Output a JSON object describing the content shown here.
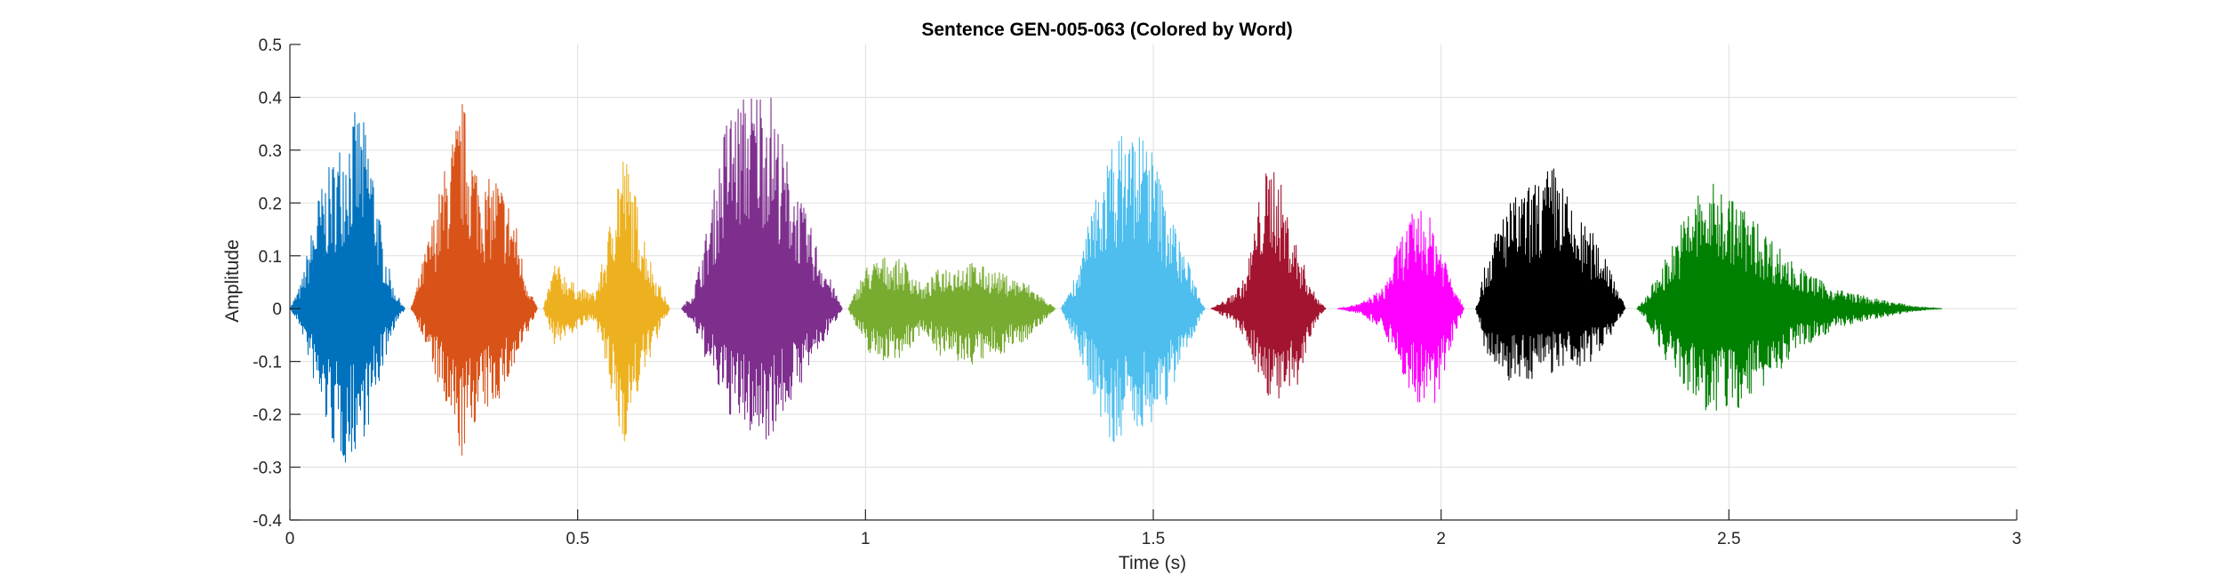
{
  "chart_data": {
    "type": "line",
    "title": "Sentence GEN-005-063 (Colored by Word)",
    "xlabel": "Time (s)",
    "ylabel": "Amplitude",
    "xlim": [
      0,
      3
    ],
    "ylim": [
      -0.4,
      0.5
    ],
    "xticks": [
      "0",
      "0.5",
      "1",
      "1.5",
      "2",
      "2.5",
      "3"
    ],
    "xtick_values": [
      0,
      0.5,
      1,
      1.5,
      2,
      2.5,
      3
    ],
    "yticks": [
      "-0.4",
      "-0.3",
      "-0.2",
      "-0.1",
      "0",
      "0.1",
      "0.2",
      "0.3",
      "0.4",
      "0.5"
    ],
    "ytick_values": [
      -0.4,
      -0.3,
      -0.2,
      -0.1,
      0,
      0.1,
      0.2,
      0.3,
      0.4,
      0.5
    ],
    "grid": true,
    "segments": [
      {
        "color": "#0072BD",
        "t_start": 0.0,
        "t_end": 0.2,
        "envelope": [
          [
            0.0,
            0.0,
            0.0
          ],
          [
            0.02,
            0.05,
            -0.04
          ],
          [
            0.05,
            0.22,
            -0.18
          ],
          [
            0.08,
            0.3,
            -0.28
          ],
          [
            0.1,
            0.36,
            -0.3
          ],
          [
            0.12,
            0.38,
            -0.26
          ],
          [
            0.14,
            0.32,
            -0.22
          ],
          [
            0.16,
            0.14,
            -0.12
          ],
          [
            0.18,
            0.04,
            -0.04
          ],
          [
            0.2,
            0.0,
            0.0
          ]
        ]
      },
      {
        "color": "#D95319",
        "t_start": 0.21,
        "t_end": 0.43,
        "envelope": [
          [
            0.21,
            0.0,
            0.0
          ],
          [
            0.22,
            0.04,
            -0.02
          ],
          [
            0.25,
            0.18,
            -0.12
          ],
          [
            0.28,
            0.32,
            -0.24
          ],
          [
            0.3,
            0.4,
            -0.29
          ],
          [
            0.32,
            0.3,
            -0.22
          ],
          [
            0.34,
            0.24,
            -0.2
          ],
          [
            0.36,
            0.26,
            -0.18
          ],
          [
            0.39,
            0.18,
            -0.12
          ],
          [
            0.41,
            0.06,
            -0.06
          ],
          [
            0.43,
            0.0,
            0.0
          ]
        ]
      },
      {
        "color": "#EDB120",
        "t_start": 0.44,
        "t_end": 0.66,
        "envelope": [
          [
            0.44,
            0.0,
            0.0
          ],
          [
            0.46,
            0.09,
            -0.07
          ],
          [
            0.5,
            0.04,
            -0.04
          ],
          [
            0.53,
            0.03,
            -0.02
          ],
          [
            0.55,
            0.12,
            -0.12
          ],
          [
            0.57,
            0.28,
            -0.24
          ],
          [
            0.58,
            0.31,
            -0.26
          ],
          [
            0.6,
            0.22,
            -0.18
          ],
          [
            0.63,
            0.08,
            -0.08
          ],
          [
            0.66,
            0.0,
            0.0
          ]
        ]
      },
      {
        "color": "#7E2F8E",
        "t_start": 0.68,
        "t_end": 0.96,
        "envelope": [
          [
            0.68,
            0.0,
            0.0
          ],
          [
            0.7,
            0.03,
            -0.03
          ],
          [
            0.73,
            0.18,
            -0.12
          ],
          [
            0.76,
            0.38,
            -0.2
          ],
          [
            0.8,
            0.42,
            -0.24
          ],
          [
            0.83,
            0.44,
            -0.25
          ],
          [
            0.86,
            0.3,
            -0.2
          ],
          [
            0.89,
            0.2,
            -0.14
          ],
          [
            0.93,
            0.08,
            -0.06
          ],
          [
            0.96,
            0.0,
            0.0
          ]
        ]
      },
      {
        "color": "#77AC30",
        "t_start": 0.97,
        "t_end": 1.33,
        "envelope": [
          [
            0.97,
            0.0,
            0.0
          ],
          [
            1.0,
            0.08,
            -0.08
          ],
          [
            1.03,
            0.1,
            -0.1
          ],
          [
            1.07,
            0.09,
            -0.09
          ],
          [
            1.1,
            0.04,
            -0.04
          ],
          [
            1.13,
            0.08,
            -0.09
          ],
          [
            1.18,
            0.09,
            -0.11
          ],
          [
            1.23,
            0.07,
            -0.09
          ],
          [
            1.28,
            0.05,
            -0.06
          ],
          [
            1.33,
            0.0,
            0.0
          ]
        ]
      },
      {
        "color": "#4DBEEE",
        "t_start": 1.34,
        "t_end": 1.59,
        "envelope": [
          [
            1.34,
            0.0,
            0.0
          ],
          [
            1.37,
            0.08,
            -0.08
          ],
          [
            1.4,
            0.22,
            -0.18
          ],
          [
            1.43,
            0.32,
            -0.28
          ],
          [
            1.46,
            0.35,
            -0.24
          ],
          [
            1.49,
            0.34,
            -0.22
          ],
          [
            1.52,
            0.22,
            -0.2
          ],
          [
            1.55,
            0.12,
            -0.1
          ],
          [
            1.59,
            0.0,
            0.0
          ]
        ]
      },
      {
        "color": "#A2142F",
        "t_start": 1.6,
        "t_end": 1.8,
        "envelope": [
          [
            1.6,
            0.0,
            0.0
          ],
          [
            1.63,
            0.02,
            -0.02
          ],
          [
            1.66,
            0.06,
            -0.06
          ],
          [
            1.69,
            0.25,
            -0.15
          ],
          [
            1.71,
            0.29,
            -0.18
          ],
          [
            1.73,
            0.2,
            -0.18
          ],
          [
            1.75,
            0.12,
            -0.16
          ],
          [
            1.78,
            0.03,
            -0.03
          ],
          [
            1.8,
            0.0,
            0.0
          ]
        ]
      },
      {
        "color": "#FF00FF",
        "t_start": 1.82,
        "t_end": 2.04,
        "envelope": [
          [
            1.82,
            0.0,
            0.0
          ],
          [
            1.86,
            0.01,
            -0.01
          ],
          [
            1.9,
            0.04,
            -0.04
          ],
          [
            1.93,
            0.14,
            -0.12
          ],
          [
            1.96,
            0.2,
            -0.19
          ],
          [
            1.99,
            0.16,
            -0.19
          ],
          [
            2.02,
            0.06,
            -0.06
          ],
          [
            2.04,
            0.0,
            0.0
          ]
        ]
      },
      {
        "color": "#000000",
        "t_start": 2.06,
        "t_end": 2.32,
        "envelope": [
          [
            2.06,
            0.0,
            0.0
          ],
          [
            2.08,
            0.1,
            -0.1
          ],
          [
            2.11,
            0.2,
            -0.14
          ],
          [
            2.14,
            0.22,
            -0.14
          ],
          [
            2.17,
            0.25,
            -0.13
          ],
          [
            2.2,
            0.28,
            -0.12
          ],
          [
            2.23,
            0.18,
            -0.12
          ],
          [
            2.26,
            0.15,
            -0.1
          ],
          [
            2.29,
            0.1,
            -0.06
          ],
          [
            2.32,
            0.0,
            0.0
          ]
        ]
      },
      {
        "color": "#008000",
        "t_start": 2.34,
        "t_end": 2.87,
        "envelope": [
          [
            2.34,
            0.0,
            0.0
          ],
          [
            2.36,
            0.03,
            -0.03
          ],
          [
            2.4,
            0.12,
            -0.12
          ],
          [
            2.44,
            0.22,
            -0.18
          ],
          [
            2.48,
            0.24,
            -0.21
          ],
          [
            2.52,
            0.2,
            -0.19
          ],
          [
            2.57,
            0.14,
            -0.14
          ],
          [
            2.62,
            0.08,
            -0.08
          ],
          [
            2.68,
            0.04,
            -0.04
          ],
          [
            2.75,
            0.02,
            -0.02
          ],
          [
            2.82,
            0.005,
            -0.005
          ],
          [
            2.87,
            0.0,
            0.0
          ]
        ]
      }
    ]
  }
}
